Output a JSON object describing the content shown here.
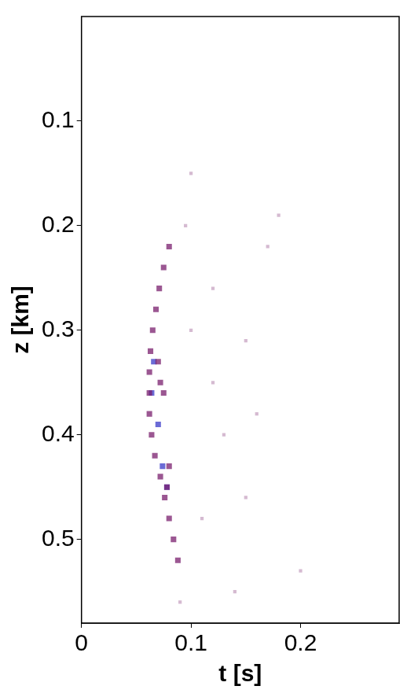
{
  "chart_data": {
    "type": "scatter",
    "x_label": "t [s]",
    "y_label": "z [km]",
    "xlim": [
      0,
      0.29
    ],
    "xticks": [
      0,
      0.1,
      0.2
    ],
    "ylim": [
      0.58,
      0
    ],
    "yticks": [
      0.1,
      0.2,
      0.3,
      0.4,
      0.5
    ],
    "grid": false,
    "series": [
      {
        "color": "#7a1f6e",
        "marker": "square",
        "x": [
          0.08,
          0.075,
          0.071,
          0.068,
          0.065,
          0.063,
          0.062,
          0.062,
          0.062,
          0.064,
          0.067,
          0.072,
          0.076,
          0.08,
          0.084,
          0.088,
          0.075,
          0.08,
          0.078,
          0.07,
          0.072
        ],
        "values": [
          0.22,
          0.24,
          0.26,
          0.28,
          0.3,
          0.32,
          0.34,
          0.36,
          0.38,
          0.4,
          0.42,
          0.44,
          0.46,
          0.48,
          0.5,
          0.52,
          0.36,
          0.43,
          0.45,
          0.33,
          0.35
        ]
      },
      {
        "color": "#3a3ac8",
        "marker": "square",
        "x": [
          0.066,
          0.064,
          0.074,
          0.078,
          0.07
        ],
        "values": [
          0.33,
          0.36,
          0.43,
          0.45,
          0.39
        ]
      },
      {
        "color": "#c7a3c2",
        "marker": "square",
        "x": [
          0.1,
          0.12,
          0.15,
          0.18,
          0.17,
          0.13,
          0.11,
          0.15,
          0.2,
          0.09,
          0.14,
          0.12,
          0.1,
          0.16,
          0.095
        ],
        "values": [
          0.3,
          0.35,
          0.31,
          0.19,
          0.22,
          0.4,
          0.48,
          0.46,
          0.53,
          0.56,
          0.55,
          0.26,
          0.15,
          0.38,
          0.2
        ]
      }
    ]
  }
}
